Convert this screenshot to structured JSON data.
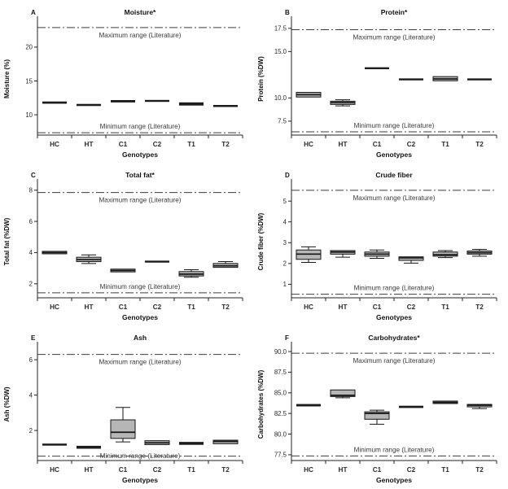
{
  "figure": {
    "x_axis_label": "Genotypes",
    "categories": [
      "HC",
      "HT",
      "C1",
      "C2",
      "T1",
      "T2"
    ],
    "max_range_label": "Maximum range (Literature)",
    "min_range_label": "Minimum range (Literature)"
  },
  "colors": {
    "background": "#ffffff",
    "axis": "#222222",
    "tick_text": "#2a2a2a",
    "title_text": "#111111",
    "range_text": "#3a3a3a",
    "dash_line": "#3d3d3d",
    "box_fill": "#b6b6b6",
    "box_stroke": "#161616",
    "flat_box": "#1c1c1c"
  },
  "chart_data": [
    {
      "type": "box",
      "panel": "A",
      "title": "Moisture*",
      "ylabel": "Moisture (%)",
      "xlabel": "Genotypes",
      "ylim": [
        7.0,
        23.6
      ],
      "yticks": [
        10,
        15,
        20
      ],
      "ytick_decimals": 0,
      "max_line": 22.9,
      "min_line": 7.35,
      "min_label_on_line": false,
      "boxes": [
        {
          "category": "HC",
          "low": 11.7,
          "q1": 11.72,
          "median": 11.8,
          "q3": 11.88,
          "high": 11.9
        },
        {
          "category": "HT",
          "low": 11.35,
          "q1": 11.38,
          "median": 11.45,
          "q3": 11.52,
          "high": 11.55
        },
        {
          "category": "C1",
          "low": 11.85,
          "q1": 11.9,
          "median": 12.0,
          "q3": 12.08,
          "high": 12.1
        },
        {
          "category": "C2",
          "low": 12.0,
          "q1": 12.02,
          "median": 12.05,
          "q3": 12.08,
          "high": 12.1
        },
        {
          "category": "T1",
          "low": 11.4,
          "q1": 11.45,
          "median": 11.6,
          "q3": 11.75,
          "high": 11.8
        },
        {
          "category": "T2",
          "low": 11.2,
          "q1": 11.25,
          "median": 11.3,
          "q3": 11.38,
          "high": 11.4
        }
      ]
    },
    {
      "type": "box",
      "panel": "B",
      "title": "Protein*",
      "ylabel": "Protein (%DW)",
      "xlabel": "Genotypes",
      "ylim": [
        6.0,
        18.1
      ],
      "yticks": [
        7.5,
        10.0,
        15.0,
        17.5
      ],
      "ytick_decimals": 1,
      "max_line": 17.35,
      "min_line": 6.35,
      "min_label_on_line": false,
      "boxes": [
        {
          "category": "HC",
          "low": 10.0,
          "q1": 10.1,
          "median": 10.35,
          "q3": 10.6,
          "high": 10.65
        },
        {
          "category": "HT",
          "low": 9.15,
          "q1": 9.3,
          "median": 9.5,
          "q3": 9.65,
          "high": 9.8
        },
        {
          "category": "C1",
          "low": 13.15,
          "q1": 13.18,
          "median": 13.2,
          "q3": 13.22,
          "high": 13.25
        },
        {
          "category": "C2",
          "low": 11.95,
          "q1": 11.97,
          "median": 12.0,
          "q3": 12.03,
          "high": 12.05
        },
        {
          "category": "T1",
          "low": 11.75,
          "q1": 11.85,
          "median": 12.05,
          "q3": 12.3,
          "high": 12.4
        },
        {
          "category": "T2",
          "low": 11.95,
          "q1": 11.98,
          "median": 12.0,
          "q3": 12.05,
          "high": 12.1
        }
      ]
    },
    {
      "type": "box",
      "panel": "C",
      "title": "Total fat*",
      "ylabel": "Total fat (%DW)",
      "xlabel": "Genotypes",
      "ylim": [
        1.1,
        8.3
      ],
      "yticks": [
        2,
        4,
        6,
        8
      ],
      "ytick_decimals": 0,
      "max_line": 7.85,
      "min_line": 1.42,
      "min_label_on_line": false,
      "boxes": [
        {
          "category": "HC",
          "low": 3.9,
          "q1": 3.92,
          "median": 4.0,
          "q3": 4.08,
          "high": 4.1
        },
        {
          "category": "HT",
          "low": 3.3,
          "q1": 3.42,
          "median": 3.55,
          "q3": 3.7,
          "high": 3.85
        },
        {
          "category": "C1",
          "low": 2.7,
          "q1": 2.76,
          "median": 2.85,
          "q3": 2.94,
          "high": 3.0
        },
        {
          "category": "C2",
          "low": 3.38,
          "q1": 3.4,
          "median": 3.42,
          "q3": 3.45,
          "high": 3.47
        },
        {
          "category": "T1",
          "low": 2.42,
          "q1": 2.5,
          "median": 2.62,
          "q3": 2.78,
          "high": 2.9
        },
        {
          "category": "T2",
          "low": 2.98,
          "q1": 3.05,
          "median": 3.15,
          "q3": 3.3,
          "high": 3.42
        }
      ]
    },
    {
      "type": "box",
      "panel": "D",
      "title": "Crude fiber",
      "ylabel": "Crude fiber  (%DW)",
      "xlabel": "Genotypes",
      "ylim": [
        0.35,
        5.75
      ],
      "yticks": [
        1,
        2,
        3,
        4,
        5
      ],
      "ytick_decimals": 0,
      "max_line": 5.52,
      "min_line": 0.52,
      "min_label_on_line": false,
      "boxes": [
        {
          "category": "HC",
          "low": 2.05,
          "q1": 2.2,
          "median": 2.45,
          "q3": 2.65,
          "high": 2.8
        },
        {
          "category": "HT",
          "low": 2.3,
          "q1": 2.45,
          "median": 2.55,
          "q3": 2.62,
          "high": 2.65
        },
        {
          "category": "C1",
          "low": 2.25,
          "q1": 2.35,
          "median": 2.45,
          "q3": 2.55,
          "high": 2.65
        },
        {
          "category": "C2",
          "low": 2.02,
          "q1": 2.15,
          "median": 2.27,
          "q3": 2.32,
          "high": 2.35
        },
        {
          "category": "T1",
          "low": 2.28,
          "q1": 2.35,
          "median": 2.42,
          "q3": 2.55,
          "high": 2.62
        },
        {
          "category": "T2",
          "low": 2.35,
          "q1": 2.45,
          "median": 2.52,
          "q3": 2.6,
          "high": 2.68
        }
      ]
    },
    {
      "type": "box",
      "panel": "E",
      "title": "Ash",
      "ylabel": "Ash (%DW)",
      "xlabel": "Genotypes",
      "ylim": [
        0.3,
        6.65
      ],
      "yticks": [
        2,
        4,
        6
      ],
      "ytick_decimals": 0,
      "max_line": 6.3,
      "min_line": 0.55,
      "min_label_on_line": true,
      "boxes": [
        {
          "category": "HC",
          "low": 1.17,
          "q1": 1.18,
          "median": 1.2,
          "q3": 1.23,
          "high": 1.25
        },
        {
          "category": "HT",
          "low": 0.95,
          "q1": 1.0,
          "median": 1.05,
          "q3": 1.1,
          "high": 1.13
        },
        {
          "category": "C1",
          "low": 1.35,
          "q1": 1.55,
          "median": 1.9,
          "q3": 2.6,
          "high": 3.3
        },
        {
          "category": "C2",
          "low": 1.15,
          "q1": 1.2,
          "median": 1.3,
          "q3": 1.42,
          "high": 1.46
        },
        {
          "category": "T1",
          "low": 1.2,
          "q1": 1.22,
          "median": 1.27,
          "q3": 1.32,
          "high": 1.35
        },
        {
          "category": "T2",
          "low": 1.22,
          "q1": 1.25,
          "median": 1.38,
          "q3": 1.45,
          "high": 1.47
        }
      ]
    },
    {
      "type": "box",
      "panel": "F",
      "title": "Carbohydrates*",
      "ylabel": "Carbohydrates (%DW)",
      "xlabel": "Genotypes",
      "ylim": [
        76.8,
        90.4
      ],
      "yticks": [
        77.5,
        80.0,
        82.5,
        85.0,
        87.5,
        90.0
      ],
      "ytick_decimals": 1,
      "max_line": 89.8,
      "min_line": 77.35,
      "min_label_on_line": false,
      "boxes": [
        {
          "category": "HC",
          "low": 83.4,
          "q1": 83.45,
          "median": 83.5,
          "q3": 83.6,
          "high": 83.65
        },
        {
          "category": "HT",
          "low": 84.4,
          "q1": 84.55,
          "median": 84.7,
          "q3": 85.35,
          "high": 85.4
        },
        {
          "category": "C1",
          "low": 81.2,
          "q1": 81.8,
          "median": 82.5,
          "q3": 82.7,
          "high": 82.9
        },
        {
          "category": "C2",
          "low": 83.2,
          "q1": 83.25,
          "median": 83.3,
          "q3": 83.38,
          "high": 83.4
        },
        {
          "category": "T1",
          "low": 83.6,
          "q1": 83.7,
          "median": 83.85,
          "q3": 84.0,
          "high": 84.05
        },
        {
          "category": "T2",
          "low": 83.1,
          "q1": 83.3,
          "median": 83.5,
          "q3": 83.6,
          "high": 83.65
        }
      ]
    }
  ]
}
